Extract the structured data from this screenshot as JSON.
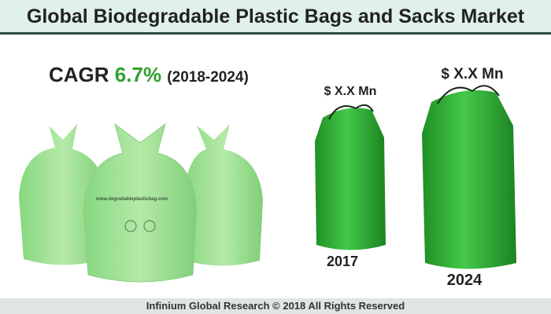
{
  "header": {
    "title": "Global Biodegradable Plastic Bags and Sacks Market"
  },
  "cagr": {
    "label": "CAGR",
    "value": "6.7%",
    "period": "(2018-2024)"
  },
  "bag_print": "www.degradableplasticbag.com",
  "bags": [
    {
      "label": "$ X.X Mn",
      "year": "2017"
    },
    {
      "label": "$ X.X Mn",
      "year": "2024"
    }
  ],
  "footer": "Infinium Global Research © 2018 All Rights Reserved"
}
